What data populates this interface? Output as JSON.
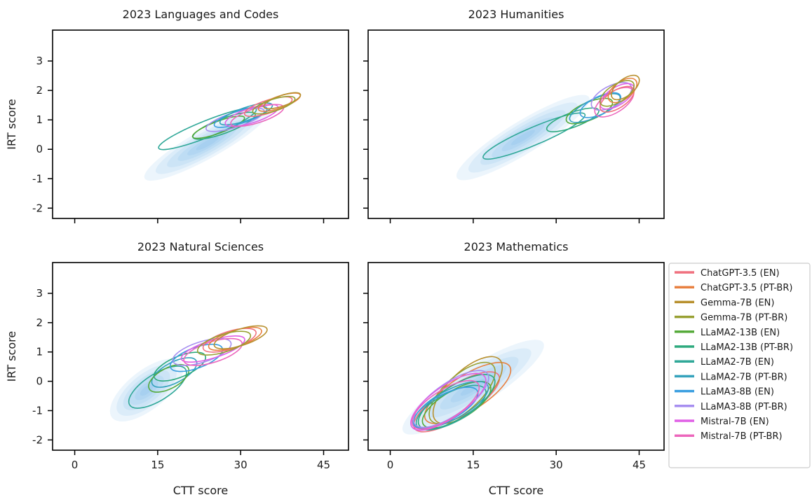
{
  "chart_data": {
    "type": "density_contour",
    "x_label": "CTT score",
    "y_label": "IRT score",
    "x_ticks": [
      0,
      15,
      30,
      45
    ],
    "y_ticks": [
      -2,
      -1,
      0,
      1,
      2,
      3
    ],
    "xlim": [
      -4,
      49.5
    ],
    "ylim": [
      -2.35,
      4.05
    ],
    "legend_position": "right",
    "background_density_color": "#4fa3e0",
    "series": [
      {
        "name": "ChatGPT-3.5 (EN)",
        "color": "#f0707e"
      },
      {
        "name": "ChatGPT-3.5 (PT-BR)",
        "color": "#e88040"
      },
      {
        "name": "Gemma-7B (EN)",
        "color": "#b8902e"
      },
      {
        "name": "Gemma-7B (PT-BR)",
        "color": "#98a032"
      },
      {
        "name": "LLaMA2-13B (EN)",
        "color": "#55aa3a"
      },
      {
        "name": "LLaMA2-13B (PT-BR)",
        "color": "#2eaa7e"
      },
      {
        "name": "LLaMA2-7B (EN)",
        "color": "#30a898"
      },
      {
        "name": "LLaMA2-7B (PT-BR)",
        "color": "#34a2bc"
      },
      {
        "name": "LLaMA3-8B (EN)",
        "color": "#3a9ee0"
      },
      {
        "name": "LLaMA3-8B (PT-BR)",
        "color": "#a68ef0"
      },
      {
        "name": "Mistral-7B (EN)",
        "color": "#e060e6"
      },
      {
        "name": "Mistral-7B (PT-BR)",
        "color": "#ec66bc"
      }
    ],
    "panels": [
      {
        "title": "2023 Languages and Codes",
        "background": {
          "cx": 24,
          "cy": 0.2,
          "major": 26,
          "minor": 0.45,
          "slope": 0.105
        },
        "contours": [
          {
            "series": 6,
            "cx": 24,
            "cy": 0.7,
            "a": 9.5,
            "b": 0.28,
            "slope": 0.075
          },
          {
            "series": 5,
            "cx": 27,
            "cy": 0.8,
            "a": 6,
            "b": 0.25,
            "slope": 0.07
          },
          {
            "series": 4,
            "cx": 26,
            "cy": 0.75,
            "a": 5,
            "b": 0.2,
            "slope": 0.07
          },
          {
            "series": 9,
            "cx": 29,
            "cy": 1.0,
            "a": 5.5,
            "b": 0.25,
            "slope": 0.06
          },
          {
            "series": 8,
            "cx": 30,
            "cy": 1.1,
            "a": 5,
            "b": 0.22,
            "slope": 0.06
          },
          {
            "series": 7,
            "cx": 31,
            "cy": 1.2,
            "a": 5,
            "b": 0.22,
            "slope": 0.065
          },
          {
            "series": 10,
            "cx": 32,
            "cy": 1.15,
            "a": 5,
            "b": 0.25,
            "slope": 0.06
          },
          {
            "series": 11,
            "cx": 33,
            "cy": 1.15,
            "a": 5,
            "b": 0.25,
            "slope": 0.06
          },
          {
            "series": 0,
            "cx": 35,
            "cy": 1.45,
            "a": 4.5,
            "b": 0.22,
            "slope": 0.06
          },
          {
            "series": 1,
            "cx": 37,
            "cy": 1.6,
            "a": 4,
            "b": 0.2,
            "slope": 0.065
          },
          {
            "series": 2,
            "cx": 37.5,
            "cy": 1.65,
            "a": 3.5,
            "b": 0.18,
            "slope": 0.065
          },
          {
            "series": 3,
            "cx": 36,
            "cy": 1.5,
            "a": 4,
            "b": 0.2,
            "slope": 0.06
          }
        ]
      },
      {
        "title": "2023 Humanities",
        "background": {
          "cx": 24,
          "cy": 0.4,
          "major": 28,
          "minor": 0.5,
          "slope": 0.115
        },
        "contours": [
          {
            "series": 6,
            "cx": 26,
            "cy": 0.45,
            "a": 10,
            "b": 0.3,
            "slope": 0.08
          },
          {
            "series": 5,
            "cx": 33,
            "cy": 1.0,
            "a": 5,
            "b": 0.25,
            "slope": 0.07
          },
          {
            "series": 4,
            "cx": 36,
            "cy": 1.3,
            "a": 4.5,
            "b": 0.3,
            "slope": 0.08
          },
          {
            "series": 7,
            "cx": 37,
            "cy": 1.4,
            "a": 5,
            "b": 0.3,
            "slope": 0.09
          },
          {
            "series": 8,
            "cx": 38,
            "cy": 1.5,
            "a": 4,
            "b": 0.3,
            "slope": 0.09
          },
          {
            "series": 9,
            "cx": 40,
            "cy": 1.8,
            "a": 4,
            "b": 0.35,
            "slope": 0.1
          },
          {
            "series": 10,
            "cx": 41,
            "cy": 1.8,
            "a": 3.5,
            "b": 0.3,
            "slope": 0.12
          },
          {
            "series": 11,
            "cx": 40.5,
            "cy": 1.6,
            "a": 4,
            "b": 0.35,
            "slope": 0.12
          },
          {
            "series": 0,
            "cx": 41,
            "cy": 1.7,
            "a": 3.5,
            "b": 0.3,
            "slope": 0.12
          },
          {
            "series": 1,
            "cx": 42,
            "cy": 2.0,
            "a": 3,
            "b": 0.3,
            "slope": 0.14
          },
          {
            "series": 2,
            "cx": 42.5,
            "cy": 2.1,
            "a": 3,
            "b": 0.28,
            "slope": 0.15
          },
          {
            "series": 3,
            "cx": 41,
            "cy": 1.9,
            "a": 3.5,
            "b": 0.3,
            "slope": 0.12
          }
        ]
      },
      {
        "title": "2023 Natural Sciences",
        "background": {
          "cx": 13,
          "cy": -0.3,
          "major": 16,
          "minor": 0.6,
          "slope": 0.15
        },
        "contours": [
          {
            "series": 6,
            "cx": 15,
            "cy": -0.2,
            "a": 6,
            "b": 0.45,
            "slope": 0.12
          },
          {
            "series": 7,
            "cx": 18,
            "cy": 0.3,
            "a": 4.5,
            "b": 0.35,
            "slope": 0.1
          },
          {
            "series": 4,
            "cx": 17,
            "cy": 0.1,
            "a": 4,
            "b": 0.35,
            "slope": 0.1
          },
          {
            "series": 5,
            "cx": 19,
            "cy": 0.5,
            "a": 5,
            "b": 0.35,
            "slope": 0.08
          },
          {
            "series": 8,
            "cx": 22,
            "cy": 0.8,
            "a": 5,
            "b": 0.35,
            "slope": 0.07
          },
          {
            "series": 9,
            "cx": 23,
            "cy": 1.0,
            "a": 5.5,
            "b": 0.35,
            "slope": 0.06
          },
          {
            "series": 10,
            "cx": 25,
            "cy": 1.1,
            "a": 6,
            "b": 0.3,
            "slope": 0.06
          },
          {
            "series": 11,
            "cx": 25,
            "cy": 1.0,
            "a": 5.5,
            "b": 0.35,
            "slope": 0.06
          },
          {
            "series": 0,
            "cx": 28,
            "cy": 1.4,
            "a": 5,
            "b": 0.3,
            "slope": 0.06
          },
          {
            "series": 1,
            "cx": 29,
            "cy": 1.45,
            "a": 5,
            "b": 0.28,
            "slope": 0.06
          },
          {
            "series": 2,
            "cx": 30,
            "cy": 1.5,
            "a": 5,
            "b": 0.28,
            "slope": 0.06
          },
          {
            "series": 3,
            "cx": 27,
            "cy": 1.3,
            "a": 5,
            "b": 0.3,
            "slope": 0.06
          }
        ]
      },
      {
        "title": "2023 Mathematics",
        "background": {
          "cx": 15,
          "cy": -0.2,
          "major": 30,
          "minor": 0.6,
          "slope": 0.12
        },
        "contours": [
          {
            "series": 0,
            "cx": 12,
            "cy": -0.7,
            "a": 9,
            "b": 0.55,
            "slope": 0.12
          },
          {
            "series": 1,
            "cx": 14,
            "cy": -0.4,
            "a": 9,
            "b": 0.6,
            "slope": 0.12
          },
          {
            "series": 2,
            "cx": 14,
            "cy": -0.3,
            "a": 8,
            "b": 0.65,
            "slope": 0.18
          },
          {
            "series": 3,
            "cx": 13,
            "cy": -0.4,
            "a": 7.5,
            "b": 0.6,
            "slope": 0.17
          },
          {
            "series": 4,
            "cx": 12,
            "cy": -0.8,
            "a": 7,
            "b": 0.5,
            "slope": 0.11
          },
          {
            "series": 5,
            "cx": 12,
            "cy": -0.7,
            "a": 8,
            "b": 0.55,
            "slope": 0.12
          },
          {
            "series": 6,
            "cx": 11,
            "cy": -0.9,
            "a": 7,
            "b": 0.5,
            "slope": 0.1
          },
          {
            "series": 7,
            "cx": 11,
            "cy": -0.8,
            "a": 7.5,
            "b": 0.5,
            "slope": 0.1
          },
          {
            "series": 8,
            "cx": 10,
            "cy": -0.9,
            "a": 6.5,
            "b": 0.45,
            "slope": 0.1
          },
          {
            "series": 9,
            "cx": 11,
            "cy": -0.6,
            "a": 8,
            "b": 0.55,
            "slope": 0.13
          },
          {
            "series": 10,
            "cx": 10.5,
            "cy": -0.7,
            "a": 8,
            "b": 0.55,
            "slope": 0.13
          },
          {
            "series": 11,
            "cx": 10,
            "cy": -0.8,
            "a": 7,
            "b": 0.5,
            "slope": 0.12
          }
        ]
      }
    ]
  }
}
